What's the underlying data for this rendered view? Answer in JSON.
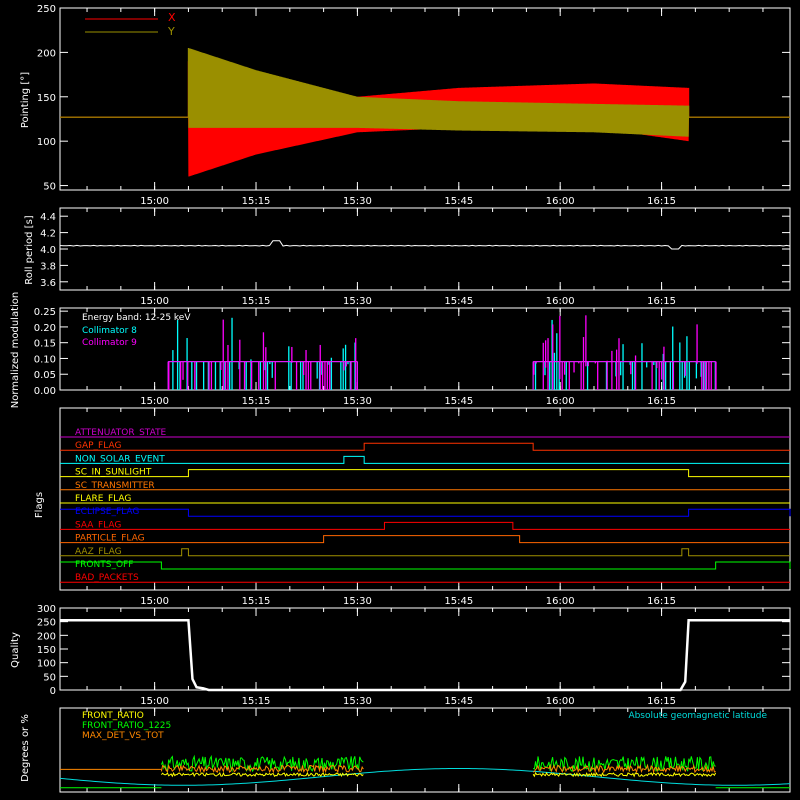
{
  "chart_data": [
    {
      "type": "line",
      "panel": "pointing",
      "ylabel": "Pointing [°]",
      "ylim": [
        45,
        250
      ],
      "yticks": [
        50,
        100,
        150,
        200,
        250
      ],
      "legend": [
        {
          "name": "X",
          "color": "#ff0000"
        },
        {
          "name": "Y",
          "color": "#9a8f00"
        }
      ],
      "xlim": [
        "14:46",
        "16:34"
      ],
      "xticks": [
        "15:00",
        "15:15",
        "15:30",
        "15:45",
        "16:00",
        "16:15"
      ],
      "series": [
        {
          "name": "X",
          "color": "#ff0000",
          "flat_value": 127,
          "active_range": [
            "15:05",
            "16:19"
          ],
          "upper_env": [
            [
              0,
              190
            ],
            [
              10,
              170
            ],
            [
              25,
              150
            ],
            [
              40,
              160
            ],
            [
              60,
              165
            ],
            [
              74,
              160
            ]
          ],
          "lower_env": [
            [
              0,
              60
            ],
            [
              10,
              85
            ],
            [
              25,
              110
            ],
            [
              40,
              115
            ],
            [
              60,
              115
            ],
            [
              74,
              100
            ]
          ]
        },
        {
          "name": "Y",
          "color": "#9a8f00",
          "flat_value": 127,
          "active_range": [
            "15:05",
            "16:19"
          ],
          "upper_env": [
            [
              0,
              205
            ],
            [
              10,
              180
            ],
            [
              25,
              150
            ],
            [
              40,
              145
            ],
            [
              60,
              142
            ],
            [
              74,
              140
            ]
          ],
          "lower_env": [
            [
              0,
              115
            ],
            [
              10,
              115
            ],
            [
              25,
              115
            ],
            [
              40,
              112
            ],
            [
              60,
              110
            ],
            [
              74,
              105
            ]
          ]
        }
      ]
    },
    {
      "type": "line",
      "panel": "roll",
      "ylabel": "Roll period [s]",
      "ylim": [
        3.5,
        4.5
      ],
      "yticks": [
        "3.6",
        "3.8",
        "4.0",
        "4.2",
        "4.4"
      ],
      "xlim": [
        "14:46",
        "16:34"
      ],
      "xticks": [
        "15:00",
        "15:15",
        "15:30",
        "15:45",
        "16:00",
        "16:15"
      ],
      "series": [
        {
          "name": "Roll period",
          "color": "#ffffff",
          "baseline": 4.04,
          "spikes": [
            [
              "15:18",
              4.1
            ],
            [
              "16:17",
              4.0
            ]
          ]
        }
      ]
    },
    {
      "type": "bar",
      "panel": "modulation",
      "ylabel": "Normalized modulation",
      "ylim": [
        0,
        0.26
      ],
      "yticks": [
        "0.00",
        "0.05",
        "0.10",
        "0.15",
        "0.20",
        "0.25"
      ],
      "xlim": [
        "14:46",
        "16:34"
      ],
      "xticks": [
        "15:00",
        "15:15",
        "15:30",
        "15:45",
        "16:00",
        "16:15"
      ],
      "annotation": "Energy band: 12-25 keV",
      "series": [
        {
          "name": "Collimator 8",
          "color": "#00ffff",
          "ranges": [
            [
              "15:02",
              "15:30"
            ],
            [
              "15:56",
              "16:23"
            ]
          ],
          "base": 0.09
        },
        {
          "name": "Collimator 9",
          "color": "#ff00ff",
          "ranges": [
            [
              "15:02",
              "15:30"
            ],
            [
              "15:56",
              "16:23"
            ]
          ],
          "base": 0.09
        }
      ]
    },
    {
      "type": "line",
      "panel": "flags",
      "ylabel": "Flags",
      "xlim": [
        "14:46",
        "16:34"
      ],
      "xticks": [
        "15:00",
        "15:15",
        "15:30",
        "15:45",
        "16:00",
        "16:15"
      ],
      "series": [
        {
          "name": "ATTENUATOR_STATE",
          "color": "#cc00cc",
          "on": []
        },
        {
          "name": "GAP_FLAG",
          "color": "#ff3300",
          "on": [
            [
              "15:31",
              "15:56"
            ]
          ]
        },
        {
          "name": "NON_SOLAR_EVENT",
          "color": "#00ffff",
          "on": [
            [
              "15:28",
              "15:31"
            ]
          ]
        },
        {
          "name": "SC_IN_SUNLIGHT",
          "color": "#ffff00",
          "on": [
            [
              "15:05",
              "16:19"
            ]
          ]
        },
        {
          "name": "SC_TRANSMITTER",
          "color": "#ff7700",
          "on": []
        },
        {
          "name": "FLARE_FLAG",
          "color": "#ffff00",
          "on": []
        },
        {
          "name": "ECLIPSE_FLAG",
          "color": "#0000ff",
          "on": [
            [
              "14:46",
              "15:05"
            ],
            [
              "16:19",
              "16:34"
            ]
          ]
        },
        {
          "name": "SAA_FLAG",
          "color": "#ff0000",
          "on": [
            [
              "15:34",
              "15:53"
            ]
          ]
        },
        {
          "name": "PARTICLE_FLAG",
          "color": "#ff6600",
          "on": [
            [
              "15:25",
              "15:54"
            ]
          ]
        },
        {
          "name": "AAZ_FLAG",
          "color": "#a09000",
          "on": [
            [
              "15:04",
              "15:05"
            ],
            [
              "16:18",
              "16:19"
            ]
          ]
        },
        {
          "name": "FRONTS_OFF",
          "color": "#00ff00",
          "on": [
            [
              "14:46",
              "15:01"
            ],
            [
              "16:23",
              "16:34"
            ]
          ]
        },
        {
          "name": "BAD_PACKETS",
          "color": "#ff0000",
          "on": []
        }
      ]
    },
    {
      "type": "line",
      "panel": "quality",
      "ylabel": "Quality",
      "ylim": [
        0,
        300
      ],
      "yticks": [
        0,
        50,
        100,
        150,
        200,
        250,
        300
      ],
      "xlim": [
        "14:46",
        "16:34"
      ],
      "xticks": [
        "15:00",
        "15:15",
        "15:30",
        "15:45",
        "16:00",
        "16:15"
      ],
      "series": [
        {
          "name": "Quality",
          "color": "#ffffff",
          "high": 255,
          "low": 0,
          "high_ranges": [
            [
              "14:46",
              "15:05"
            ],
            [
              "16:19",
              "16:34"
            ]
          ]
        }
      ]
    },
    {
      "type": "line",
      "panel": "ratios",
      "ylabel": "Degrees or %",
      "xlim": [
        "14:46",
        "16:34"
      ],
      "series": [
        {
          "name": "FRONT_RATIO",
          "color": "#ffff00"
        },
        {
          "name": "FRONT_RATIO_1225",
          "color": "#00ff00"
        },
        {
          "name": "MAX_DET_VS_TOT",
          "color": "#ff8800"
        },
        {
          "name": "Absolute geomagnetic latitude",
          "color": "#00dddd"
        }
      ]
    }
  ]
}
